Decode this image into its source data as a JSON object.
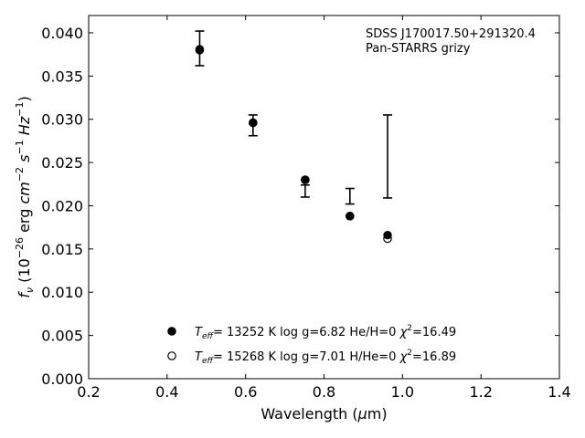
{
  "chart_data": {
    "type": "scatter",
    "annotation": [
      "SDSS J170017.50+291320.4",
      "Pan-STARRS grizy"
    ],
    "xlabel": "Wavelength (μm)",
    "ylabel": "f_ν (10^−26 erg cm^−2 s^−1 Hz^−1)",
    "xlim": [
      0.2,
      1.4
    ],
    "ylim": [
      0.0,
      0.042
    ],
    "xticks": [
      0.2,
      0.4,
      0.6,
      0.8,
      1.0,
      1.2,
      1.4
    ],
    "xtick_labels": [
      "0.2",
      "0.4",
      "0.6",
      "0.8",
      "1.0",
      "1.2",
      "1.4"
    ],
    "yticks": [
      0.0,
      0.005,
      0.01,
      0.015,
      0.02,
      0.025,
      0.03,
      0.035,
      0.04
    ],
    "ytick_labels": [
      "0.000",
      "0.005",
      "0.010",
      "0.015",
      "0.020",
      "0.025",
      "0.030",
      "0.035",
      "0.040"
    ],
    "grid": false,
    "legend_placement": "lower-center",
    "observed": {
      "x": [
        0.483,
        0.619,
        0.752,
        0.866,
        0.962
      ],
      "y": [
        0.0382,
        0.0293,
        0.0217,
        0.0211,
        0.0257
      ],
      "err": [
        0.002,
        0.0012,
        0.0007,
        0.0009,
        0.0048
      ]
    },
    "series": [
      {
        "label": "T_eff= 13252 K  log g=6.82  He/H=0  χ²=16.49",
        "marker": "filled-circle",
        "x": [
          0.483,
          0.619,
          0.752,
          0.866,
          0.962
        ],
        "y": [
          0.0381,
          0.0296,
          0.023,
          0.0188,
          0.0166
        ]
      },
      {
        "label": "T_eff= 15268 K  log g=7.01  H/He=0  χ²=16.89",
        "marker": "open-circle",
        "x": [
          0.483,
          0.619,
          0.752,
          0.866,
          0.962
        ],
        "y": [
          0.038,
          0.0296,
          0.023,
          0.0188,
          0.0162
        ]
      }
    ]
  }
}
